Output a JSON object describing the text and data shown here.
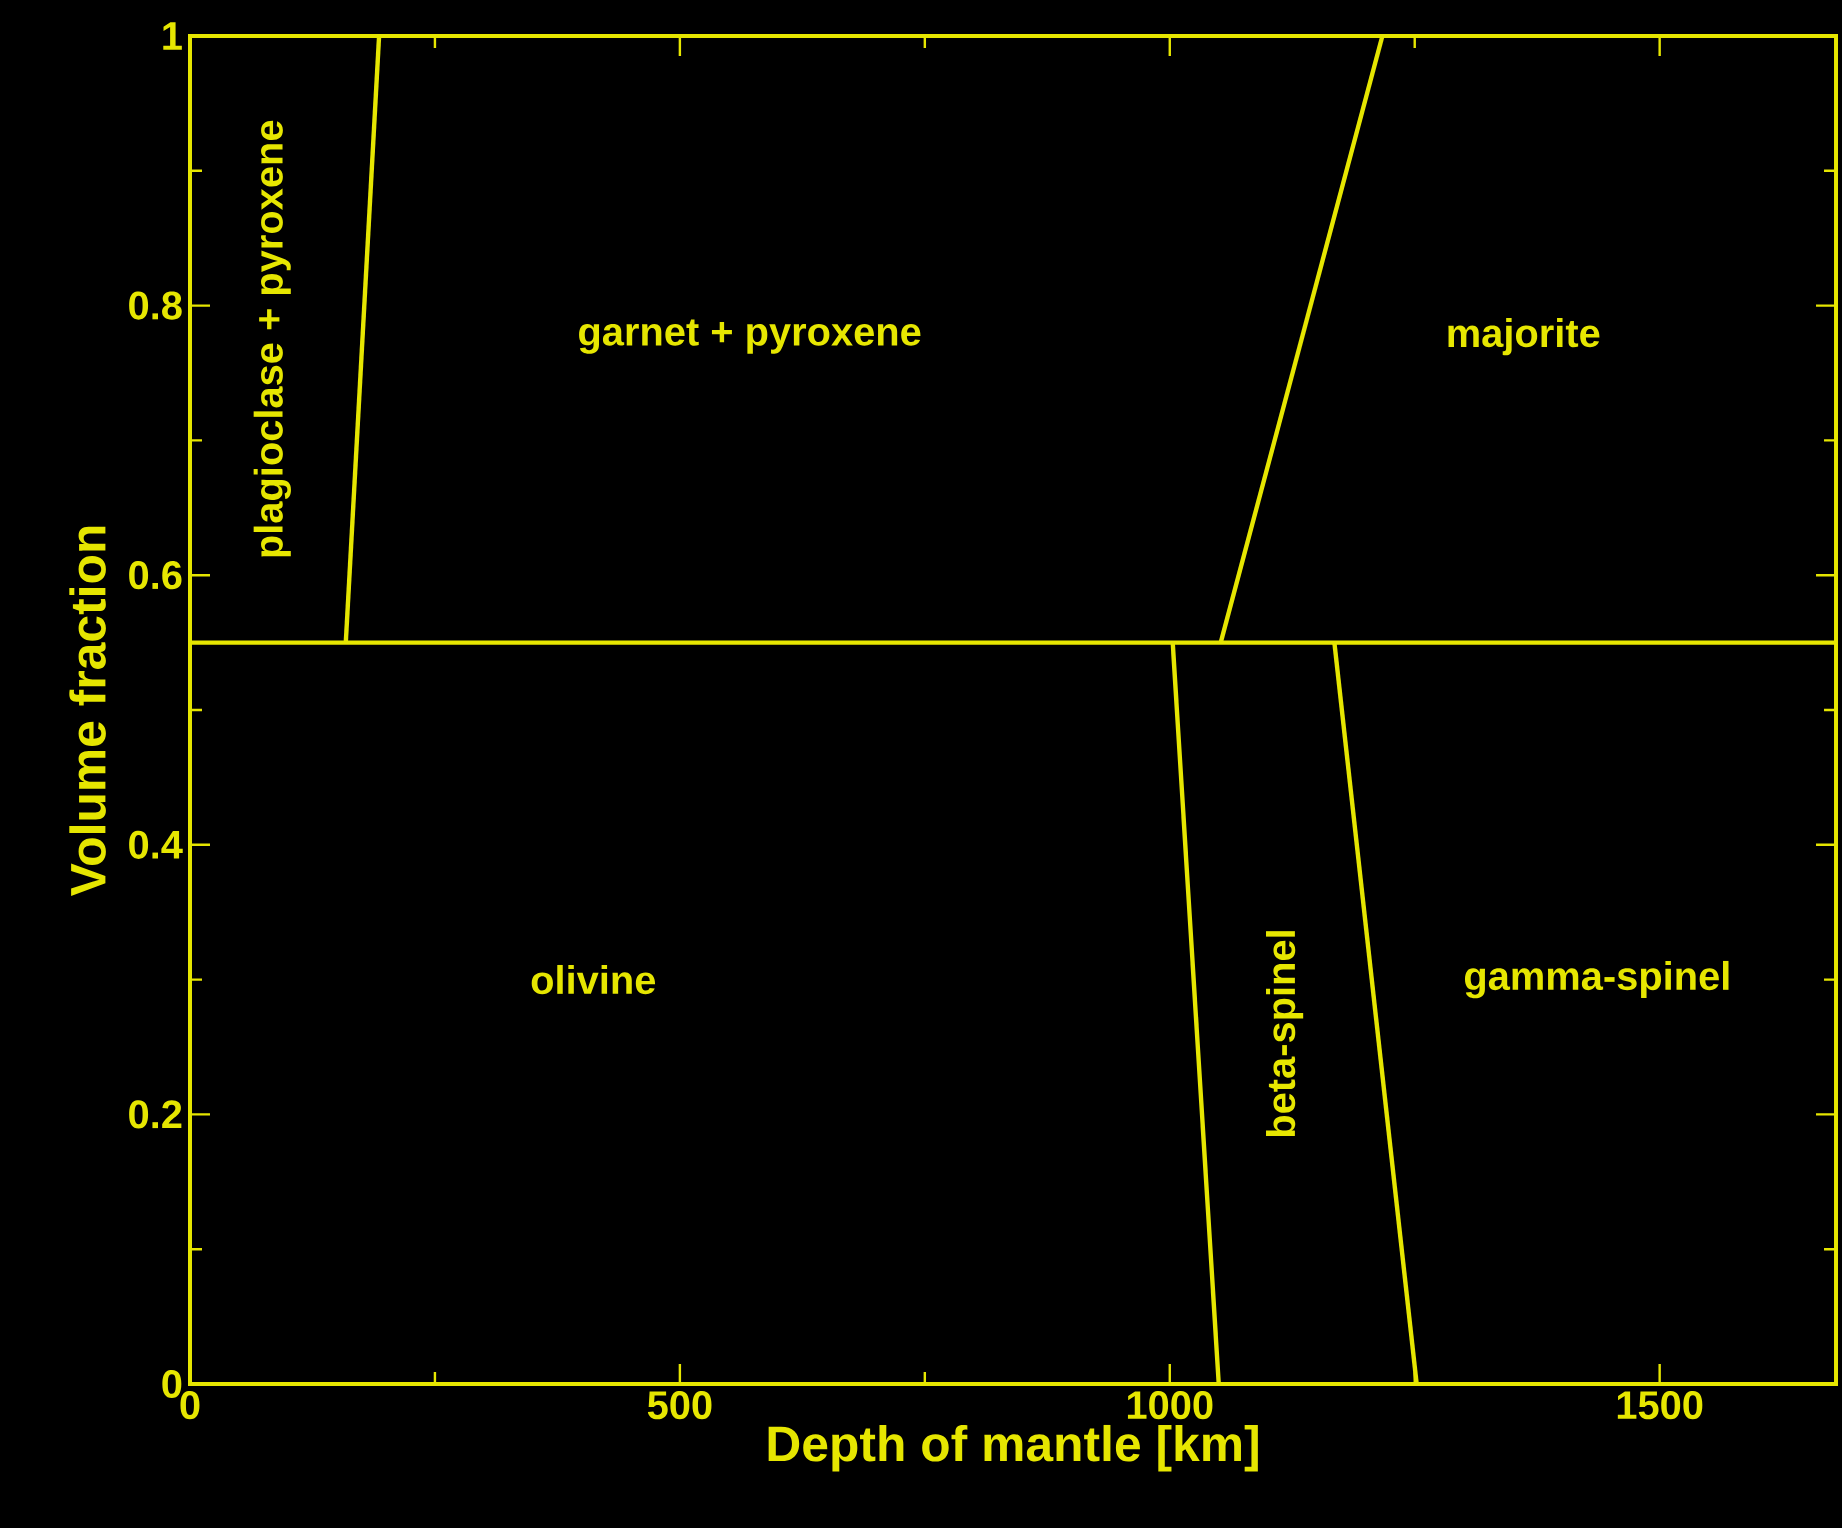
{
  "chart_data": {
    "type": "line",
    "xlabel": "Depth of mantle [km]",
    "ylabel": "Volume fraction",
    "xlim": [
      0,
      1680
    ],
    "ylim": [
      0,
      1
    ],
    "xticks": [
      0,
      500,
      1000,
      1500
    ],
    "yticks": [
      0,
      0.2,
      0.4,
      0.6,
      0.8,
      1
    ],
    "marker": "none",
    "line_style": "solid",
    "series": [
      {
        "color": "#e6e600",
        "x": [
          0,
          1680
        ],
        "values": [
          0.55,
          0.55
        ]
      },
      {
        "color": "#e6e600",
        "x": [
          159,
          193
        ],
        "values": [
          0.55,
          1
        ]
      },
      {
        "color": "#e6e600",
        "x": [
          1052,
          1217
        ],
        "values": [
          0.55,
          1
        ]
      },
      {
        "color": "#e6e600",
        "x": [
          1003,
          1050
        ],
        "values": [
          0.55,
          0
        ]
      },
      {
        "color": "#e6e600",
        "x": [
          1168,
          1252
        ],
        "values": [
          0.55,
          0
        ]
      }
    ],
    "annotations": [
      "plagioclase + pyroxene",
      "garnet + pyroxene",
      "majorite",
      "olivine",
      "beta-spinel",
      "gamma-spinel"
    ]
  }
}
